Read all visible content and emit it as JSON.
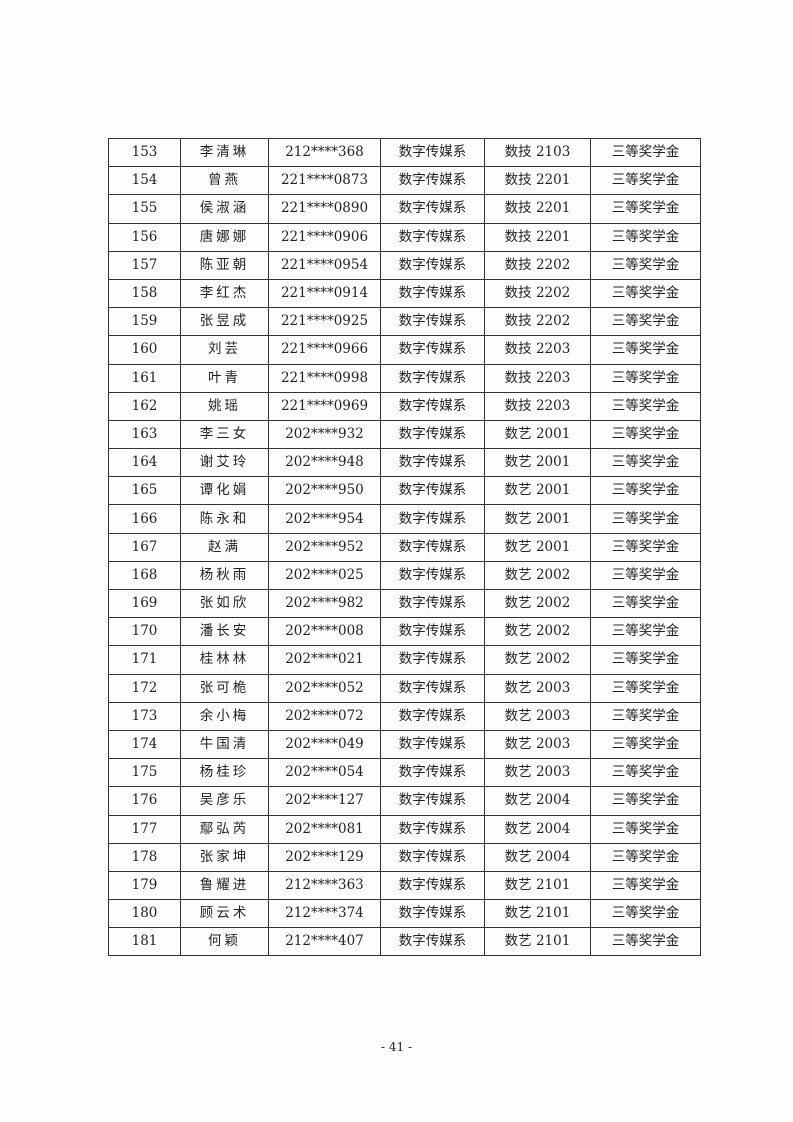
{
  "table": {
    "rows": [
      [
        "153",
        "李清琳",
        "212****368",
        "数字传媒系",
        "数技 2103",
        "三等奖学金"
      ],
      [
        "154",
        "曾燕",
        "221****0873",
        "数字传媒系",
        "数技 2201",
        "三等奖学金"
      ],
      [
        "155",
        "侯淑涵",
        "221****0890",
        "数字传媒系",
        "数技 2201",
        "三等奖学金"
      ],
      [
        "156",
        "唐娜娜",
        "221****0906",
        "数字传媒系",
        "数技 2201",
        "三等奖学金"
      ],
      [
        "157",
        "陈亚朝",
        "221****0954",
        "数字传媒系",
        "数技 2202",
        "三等奖学金"
      ],
      [
        "158",
        "李红杰",
        "221****0914",
        "数字传媒系",
        "数技 2202",
        "三等奖学金"
      ],
      [
        "159",
        "张昱成",
        "221****0925",
        "数字传媒系",
        "数技 2202",
        "三等奖学金"
      ],
      [
        "160",
        "刘芸",
        "221****0966",
        "数字传媒系",
        "数技 2203",
        "三等奖学金"
      ],
      [
        "161",
        "叶青",
        "221****0998",
        "数字传媒系",
        "数技 2203",
        "三等奖学金"
      ],
      [
        "162",
        "姚瑶",
        "221****0969",
        "数字传媒系",
        "数技 2203",
        "三等奖学金"
      ],
      [
        "163",
        "李三女",
        "202****932",
        "数字传媒系",
        "数艺 2001",
        "三等奖学金"
      ],
      [
        "164",
        "谢艾玲",
        "202****948",
        "数字传媒系",
        "数艺 2001",
        "三等奖学金"
      ],
      [
        "165",
        "谭化娟",
        "202****950",
        "数字传媒系",
        "数艺 2001",
        "三等奖学金"
      ],
      [
        "166",
        "陈永和",
        "202****954",
        "数字传媒系",
        "数艺 2001",
        "三等奖学金"
      ],
      [
        "167",
        "赵满",
        "202****952",
        "数字传媒系",
        "数艺 2001",
        "三等奖学金"
      ],
      [
        "168",
        "杨秋雨",
        "202****025",
        "数字传媒系",
        "数艺 2002",
        "三等奖学金"
      ],
      [
        "169",
        "张如欣",
        "202****982",
        "数字传媒系",
        "数艺 2002",
        "三等奖学金"
      ],
      [
        "170",
        "潘长安",
        "202****008",
        "数字传媒系",
        "数艺 2002",
        "三等奖学金"
      ],
      [
        "171",
        "桂林林",
        "202****021",
        "数字传媒系",
        "数艺 2002",
        "三等奖学金"
      ],
      [
        "172",
        "张可桅",
        "202****052",
        "数字传媒系",
        "数艺 2003",
        "三等奖学金"
      ],
      [
        "173",
        "余小梅",
        "202****072",
        "数字传媒系",
        "数艺 2003",
        "三等奖学金"
      ],
      [
        "174",
        "牛国清",
        "202****049",
        "数字传媒系",
        "数艺 2003",
        "三等奖学金"
      ],
      [
        "175",
        "杨桂珍",
        "202****054",
        "数字传媒系",
        "数艺 2003",
        "三等奖学金"
      ],
      [
        "176",
        "吴彦乐",
        "202****127",
        "数字传媒系",
        "数艺 2004",
        "三等奖学金"
      ],
      [
        "177",
        "鄢弘芮",
        "202****081",
        "数字传媒系",
        "数艺 2004",
        "三等奖学金"
      ],
      [
        "178",
        "张家坤",
        "202****129",
        "数字传媒系",
        "数艺 2004",
        "三等奖学金"
      ],
      [
        "179",
        "鲁耀进",
        "212****363",
        "数字传媒系",
        "数艺 2101",
        "三等奖学金"
      ],
      [
        "180",
        "顾云术",
        "212****374",
        "数字传媒系",
        "数艺 2101",
        "三等奖学金"
      ],
      [
        "181",
        "何颖",
        "212****407",
        "数字传媒系",
        "数艺 2101",
        "三等奖学金"
      ]
    ]
  },
  "page_number": "- 41 -"
}
